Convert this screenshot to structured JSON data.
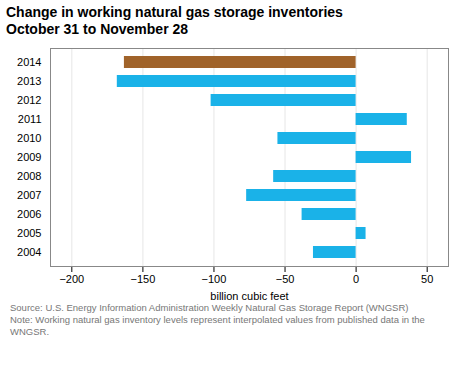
{
  "chart_data": {
    "type": "bar",
    "orientation": "horizontal",
    "title": "Change in working natural gas storage inventories",
    "subtitle": "October 31 to November 28",
    "xlabel": "billion cubic feet",
    "categories": [
      "2014",
      "2013",
      "2012",
      "2011",
      "2010",
      "2009",
      "2008",
      "2007",
      "2006",
      "2005",
      "2004"
    ],
    "values": [
      -163,
      -168,
      -102,
      36,
      -55,
      39,
      -58,
      -77,
      -38,
      7,
      -30
    ],
    "colors": [
      "#a0632a",
      "#1ab2e8",
      "#1ab2e8",
      "#1ab2e8",
      "#1ab2e8",
      "#1ab2e8",
      "#1ab2e8",
      "#1ab2e8",
      "#1ab2e8",
      "#1ab2e8",
      "#1ab2e8"
    ],
    "xlim": [
      -215,
      65
    ],
    "xticks": [
      -200,
      -150,
      -100,
      -50,
      0,
      50
    ],
    "grid": true,
    "annotations": [
      "Source: U.S. Energy Information Administration Weekly Natural Gas Storage Report (WNGSR)",
      "Note: Working natural gas inventory levels represent interpolated values from published data in the WNGSR."
    ]
  }
}
